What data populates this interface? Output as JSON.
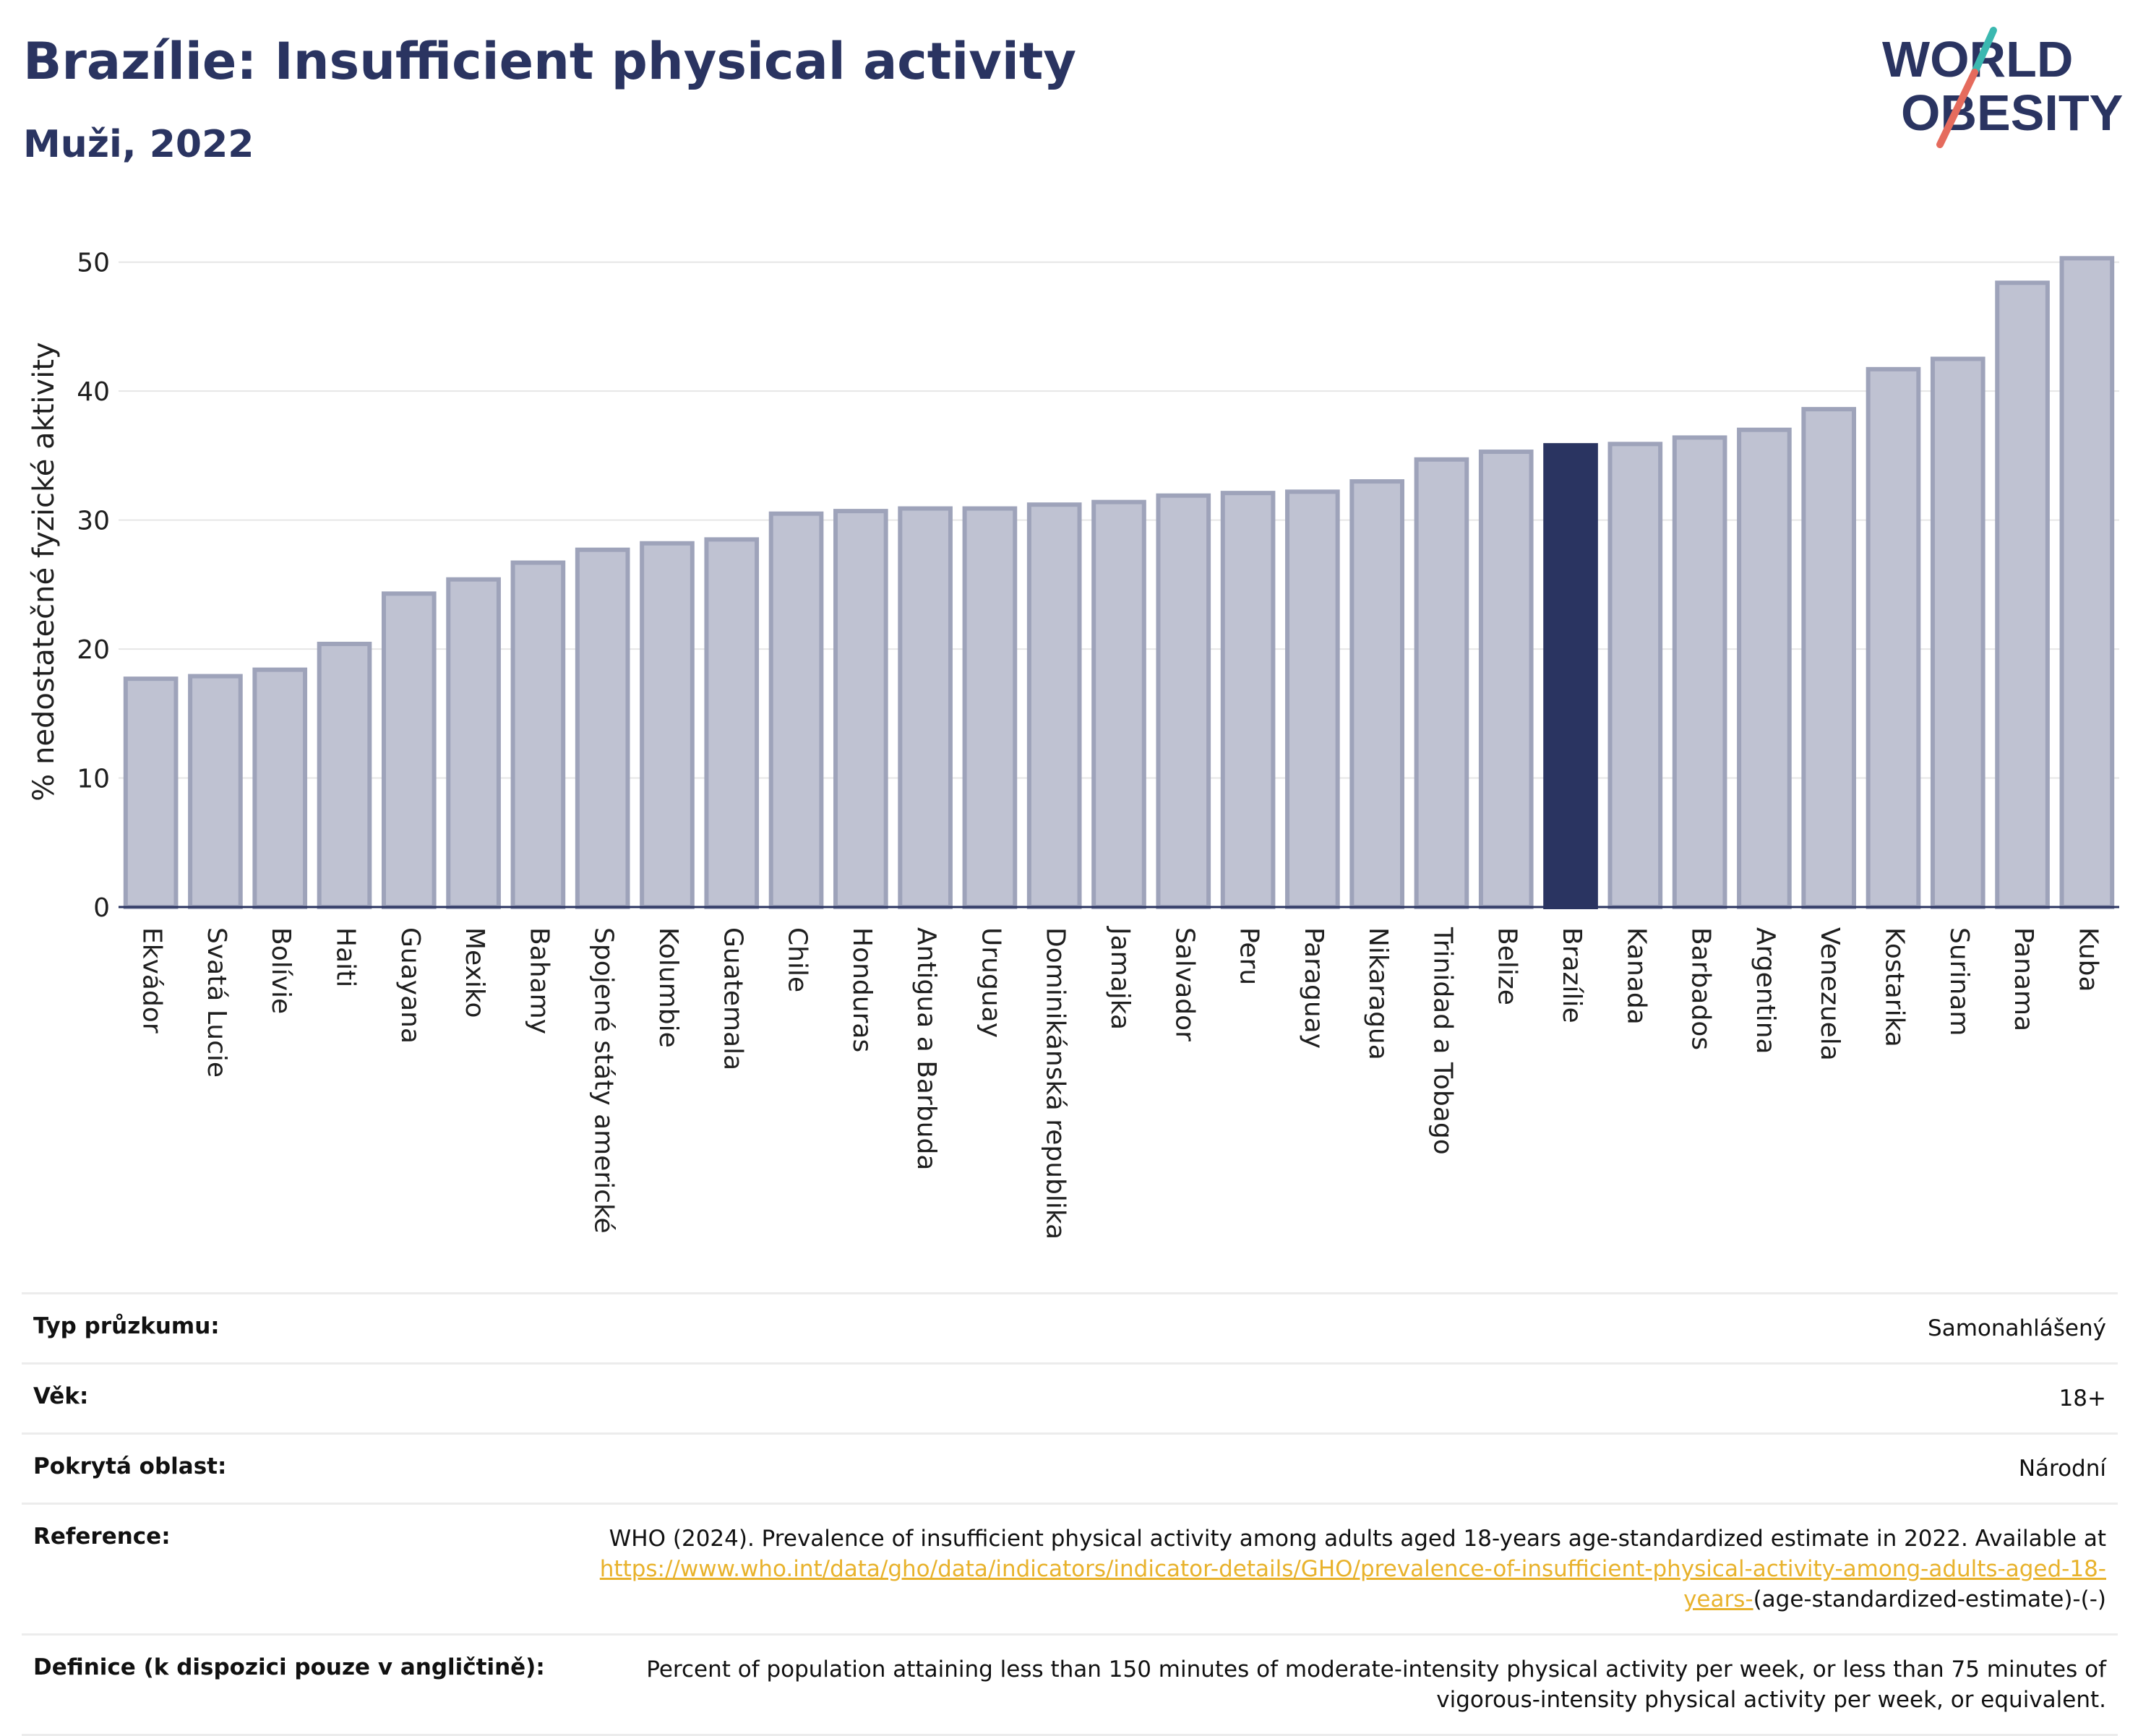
{
  "header": {
    "title": "Brazílie: Insufficient physical activity",
    "subtitle": "Muži, 2022"
  },
  "logo": {
    "line1": "WORLD",
    "line2": "OBESITY"
  },
  "colors": {
    "bar": "#bfc2d2",
    "bar_border": "#9ea3ba",
    "highlight": "#2a3461",
    "title": "#2a3461",
    "grid": "#e6e6e6"
  },
  "chart_data": {
    "type": "bar",
    "title": "Brazílie: Insufficient physical activity",
    "subtitle": "Muži, 2022",
    "xlabel": "",
    "ylabel": "% nedostatečné fyzické aktivity",
    "ylim": [
      0,
      52
    ],
    "yticks": [
      0,
      10,
      20,
      30,
      40,
      50
    ],
    "grid": true,
    "highlight": "Brazílie",
    "categories": [
      "Ekvádor",
      "Svatá Lucie",
      "Bolívie",
      "Haiti",
      "Guayana",
      "Mexiko",
      "Bahamy",
      "Spojené státy americké",
      "Kolumbie",
      "Guatemala",
      "Chile",
      "Honduras",
      "Antigua a Barbuda",
      "Uruguay",
      "Dominikánská republika",
      "Jamajka",
      "Salvador",
      "Peru",
      "Paraguay",
      "Nikaragua",
      "Trinidad a Tobago",
      "Belize",
      "Brazílie",
      "Kanada",
      "Barbados",
      "Argentina",
      "Venezuela",
      "Kostarika",
      "Surinam",
      "Panama",
      "Kuba"
    ],
    "values": [
      17.7,
      17.9,
      18.4,
      20.4,
      24.3,
      25.4,
      26.7,
      27.7,
      28.2,
      28.5,
      30.5,
      30.7,
      30.9,
      30.9,
      31.2,
      31.4,
      31.9,
      32.1,
      32.2,
      33.0,
      34.7,
      35.3,
      35.8,
      35.9,
      36.4,
      37.0,
      38.6,
      41.7,
      42.5,
      48.4,
      50.3
    ]
  },
  "meta": [
    {
      "key": "Typ průzkumu:",
      "value": "Samonahlášený"
    },
    {
      "key": "Věk:",
      "value": "18+"
    },
    {
      "key": "Pokrytá oblast:",
      "value": "Národní"
    },
    {
      "key": "Reference:",
      "value": "WHO (2024). Prevalence of insufficient physical activity among adults aged 18-years age-standardized estimate in 2022. Available at",
      "link": "https://www.who.int/data/gho/data/indicators/indicator-details/GHO/prevalence-of-insufficient-physical-activity-among-adults-aged-18-years-",
      "suffix": "(age-standardized-estimate)-(-)"
    },
    {
      "key": "Definice (k dispozici pouze v angličtině):",
      "value": "Percent of population attaining less than 150 minutes of moderate-intensity physical activity per week, or less than 75 minutes of vigorous-intensity physical activity per week, or equivalent."
    }
  ]
}
